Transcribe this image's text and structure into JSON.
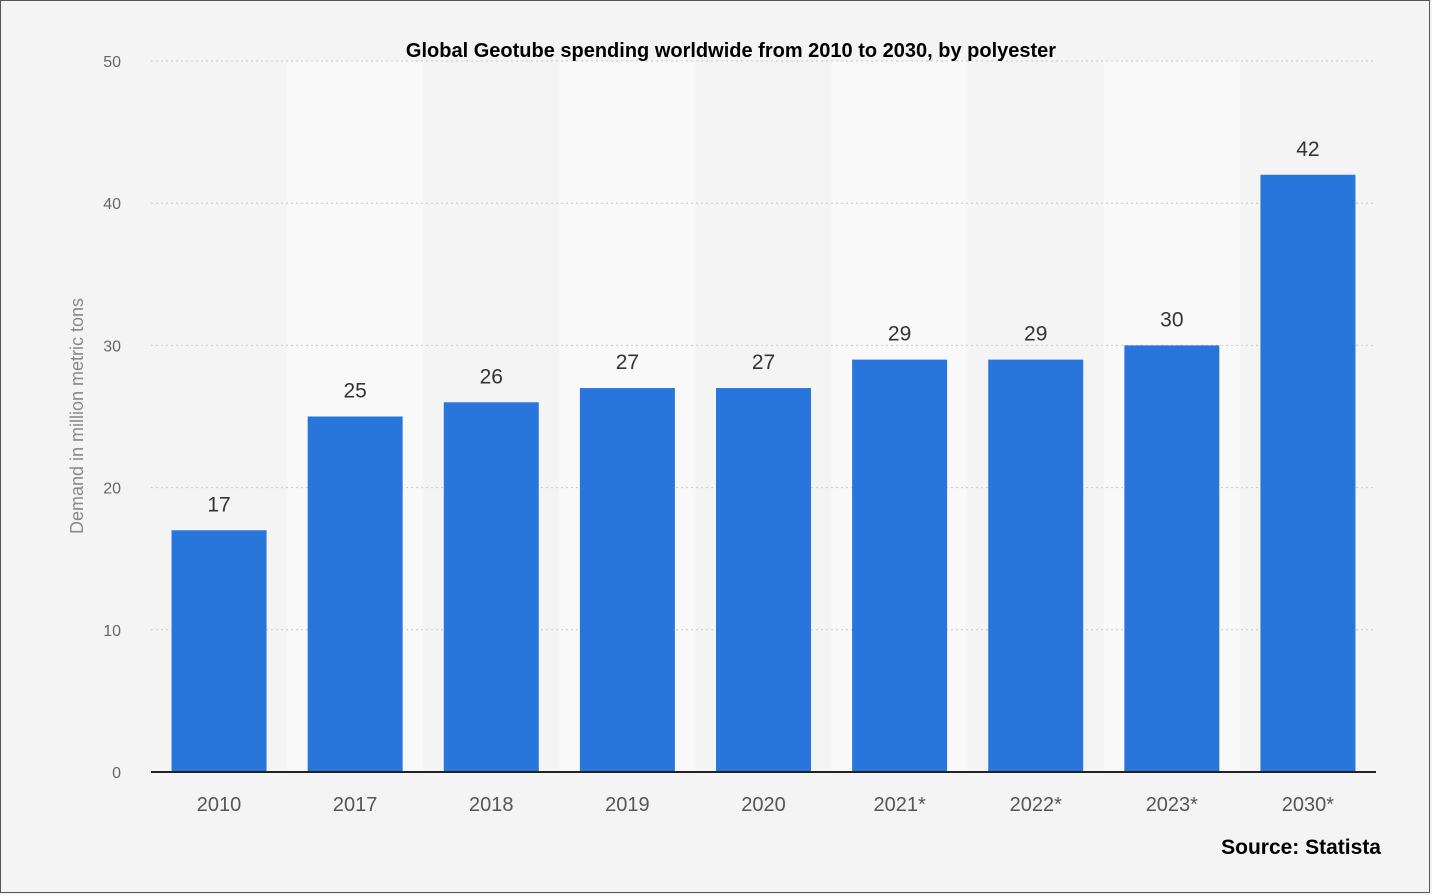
{
  "chart_data": {
    "type": "bar",
    "title": "Global Geotube spending worldwide from 2010 to 2030, by polyester",
    "ylabel": "Demand in million metric tons",
    "xlabel": "",
    "categories": [
      "2010",
      "2017",
      "2018",
      "2019",
      "2020",
      "2021*",
      "2022*",
      "2023*",
      "2030*"
    ],
    "values": [
      17,
      25,
      26,
      27,
      27,
      29,
      29,
      30,
      42
    ],
    "data_labels": [
      "17",
      "25",
      "26",
      "27",
      "27",
      "29",
      "29",
      "30",
      "42"
    ],
    "ylim": [
      0,
      50
    ],
    "yticks": [
      "0",
      "10",
      "20",
      "30",
      "40",
      "50"
    ],
    "grid": true,
    "bar_color": "#2875dc",
    "source": "Source: Statista"
  }
}
